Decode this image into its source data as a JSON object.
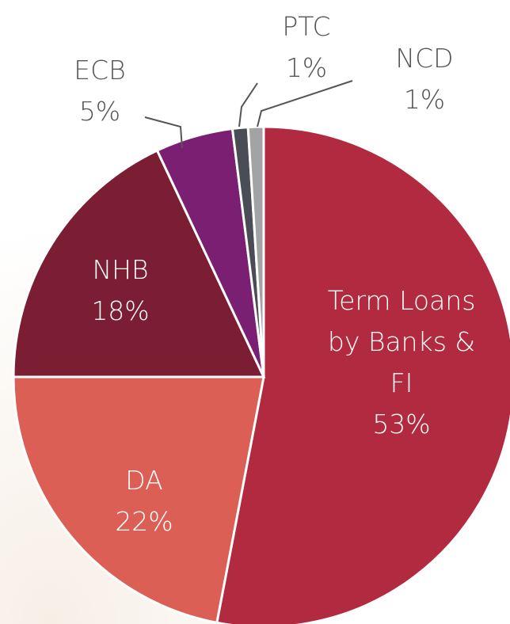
{
  "chart_data": {
    "type": "pie",
    "categories": [
      "Term Loans by Banks & FI",
      "DA",
      "NHB",
      "ECB",
      "PTC",
      "NCD"
    ],
    "values": [
      53,
      22,
      18,
      5,
      1,
      1
    ],
    "value_labels": [
      "53%",
      "22%",
      "18%",
      "5%",
      "1%",
      "1%"
    ],
    "colors": [
      "#b22a40",
      "#dc5f55",
      "#7b1d33",
      "#7b1f73",
      "#4a4d55",
      "#a3a3a3"
    ]
  }
}
